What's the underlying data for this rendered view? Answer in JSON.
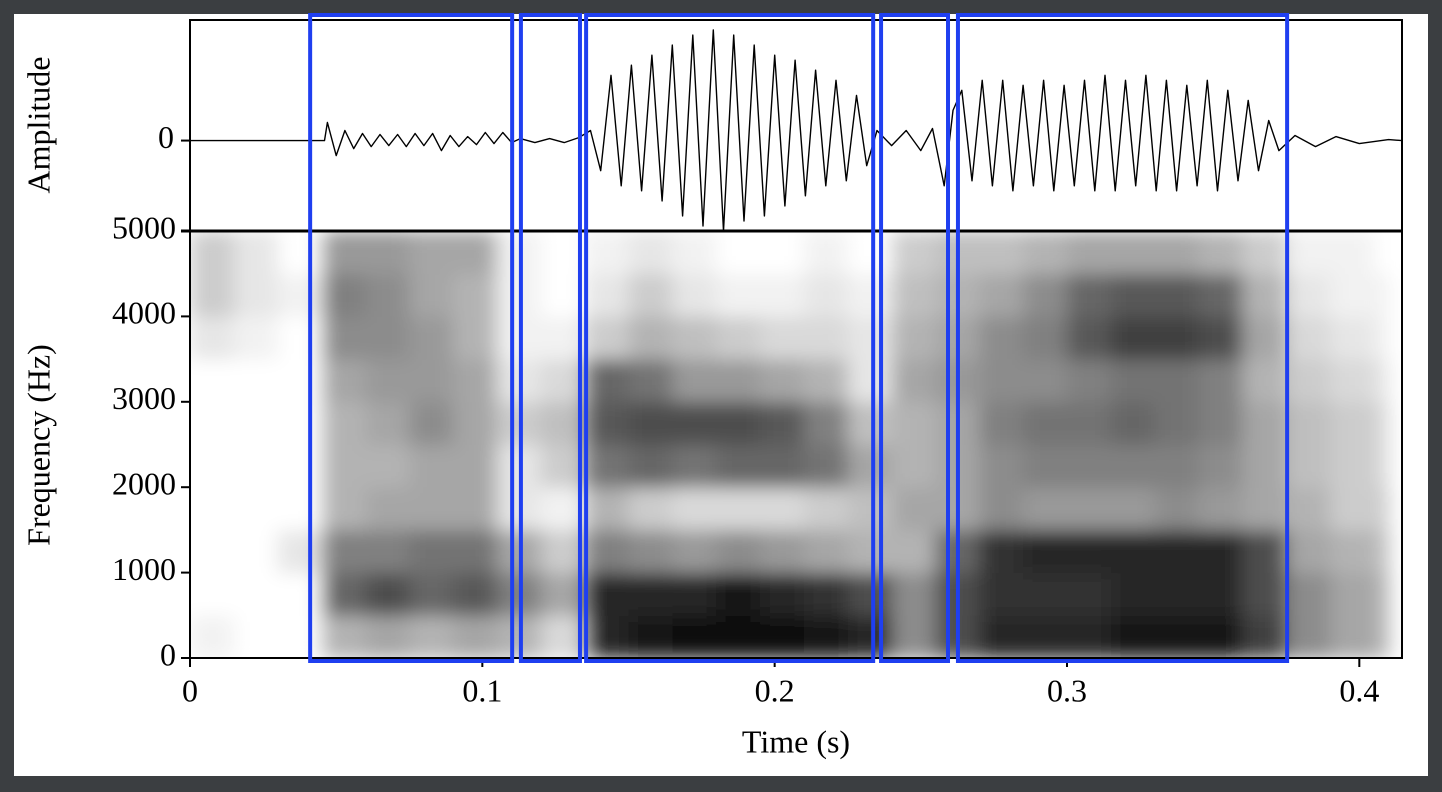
{
  "chart_data": [
    {
      "type": "line",
      "ylabel": "Amplitude",
      "color": "#000000",
      "xlim": [
        0,
        0.4146
      ],
      "ylim": [
        -0.9,
        1.2
      ],
      "yticks": [
        0
      ],
      "x": [
        0,
        0.046,
        0.047,
        0.05,
        0.053,
        0.056,
        0.059,
        0.062,
        0.065,
        0.068,
        0.071,
        0.074,
        0.077,
        0.08,
        0.083,
        0.086,
        0.089,
        0.092,
        0.095,
        0.098,
        0.101,
        0.104,
        0.107,
        0.11,
        0.113,
        0.118,
        0.123,
        0.128,
        0.133,
        0.137,
        0.1405,
        0.144,
        0.1475,
        0.151,
        0.1545,
        0.158,
        0.1615,
        0.165,
        0.1685,
        0.172,
        0.1755,
        0.179,
        0.1825,
        0.186,
        0.1895,
        0.193,
        0.1965,
        0.2,
        0.2035,
        0.207,
        0.2105,
        0.214,
        0.2175,
        0.221,
        0.2245,
        0.228,
        0.2315,
        0.235,
        0.24,
        0.245,
        0.25,
        0.254,
        0.258,
        0.261,
        0.264,
        0.2675,
        0.271,
        0.2745,
        0.278,
        0.2815,
        0.285,
        0.2885,
        0.292,
        0.2955,
        0.299,
        0.3025,
        0.306,
        0.3095,
        0.313,
        0.3165,
        0.32,
        0.3235,
        0.327,
        0.3305,
        0.334,
        0.3375,
        0.341,
        0.3445,
        0.348,
        0.3515,
        0.355,
        0.3585,
        0.362,
        0.3655,
        0.369,
        0.3725,
        0.378,
        0.385,
        0.392,
        0.4,
        0.41,
        0.4146
      ],
      "values": [
        0,
        0,
        0.18,
        -0.15,
        0.1,
        -0.08,
        0.07,
        -0.06,
        0.06,
        -0.05,
        0.06,
        -0.06,
        0.07,
        -0.05,
        0.07,
        -0.1,
        0.05,
        -0.06,
        0.04,
        -0.04,
        0.08,
        -0.03,
        0.08,
        -0.02,
        0.02,
        -0.02,
        0.02,
        -0.02,
        0.03,
        0.1,
        -0.3,
        0.65,
        -0.45,
        0.75,
        -0.5,
        0.85,
        -0.6,
        0.95,
        -0.75,
        1.05,
        -0.85,
        1.1,
        -0.9,
        1.05,
        -0.8,
        0.95,
        -0.75,
        0.85,
        -0.65,
        0.8,
        -0.55,
        0.7,
        -0.45,
        0.6,
        -0.4,
        0.45,
        -0.25,
        0.1,
        -0.05,
        0.1,
        -0.1,
        0.12,
        -0.45,
        0.3,
        0.5,
        -0.4,
        0.6,
        -0.45,
        0.6,
        -0.5,
        0.55,
        -0.45,
        0.6,
        -0.5,
        0.55,
        -0.45,
        0.6,
        -0.5,
        0.65,
        -0.5,
        0.6,
        -0.45,
        0.65,
        -0.5,
        0.6,
        -0.5,
        0.55,
        -0.45,
        0.6,
        -0.5,
        0.5,
        -0.4,
        0.4,
        -0.3,
        0.2,
        -0.1,
        0.05,
        -0.06,
        0.04,
        -0.03,
        0.01,
        0
      ]
    },
    {
      "type": "spectrogram",
      "xlabel": "Time (s)",
      "ylabel": "Frequency (Hz)",
      "xlim": [
        0,
        0.4146
      ],
      "xticks": [
        0,
        0.1,
        0.2,
        0.3,
        0.4
      ],
      "ylim": [
        0,
        5000
      ],
      "yticks": [
        0,
        1000,
        2000,
        3000,
        4000,
        5000
      ],
      "time_bins": [
        0,
        0.015,
        0.03,
        0.045,
        0.06,
        0.075,
        0.09,
        0.105,
        0.12,
        0.135,
        0.15,
        0.165,
        0.18,
        0.195,
        0.21,
        0.225,
        0.24,
        0.255,
        0.27,
        0.285,
        0.3,
        0.315,
        0.33,
        0.345,
        0.36,
        0.375,
        0.39,
        0.405,
        0.41
      ],
      "frequency_bins": [
        0,
        500,
        1000,
        1500,
        2000,
        2500,
        3000,
        3500,
        4000,
        4500,
        5000
      ],
      "intensity": [
        [
          0.05,
          0,
          0,
          0,
          0,
          0,
          0,
          0.1,
          0.2,
          0.2
        ],
        [
          0,
          0,
          0,
          0,
          0,
          0,
          0,
          0.05,
          0.1,
          0.1
        ],
        [
          0,
          0,
          0.1,
          0,
          0,
          0,
          0,
          0,
          0.05,
          0
        ],
        [
          0.3,
          0.6,
          0.5,
          0.3,
          0.3,
          0.3,
          0.35,
          0.45,
          0.5,
          0.4
        ],
        [
          0.35,
          0.7,
          0.5,
          0.35,
          0.3,
          0.35,
          0.4,
          0.45,
          0.45,
          0.4
        ],
        [
          0.3,
          0.6,
          0.55,
          0.35,
          0.35,
          0.45,
          0.4,
          0.4,
          0.35,
          0.35
        ],
        [
          0.35,
          0.65,
          0.55,
          0.35,
          0.35,
          0.35,
          0.35,
          0.3,
          0.3,
          0.35
        ],
        [
          0.3,
          0.5,
          0.35,
          0.1,
          0.1,
          0.2,
          0.1,
          0.05,
          0.05,
          0.05
        ],
        [
          0.15,
          0.35,
          0.2,
          0.05,
          0.2,
          0.25,
          0.15,
          0.05,
          0,
          0
        ],
        [
          0.85,
          0.85,
          0.5,
          0.3,
          0.55,
          0.65,
          0.6,
          0.2,
          0.1,
          0.05
        ],
        [
          0.9,
          0.85,
          0.45,
          0.2,
          0.6,
          0.7,
          0.55,
          0.3,
          0.2,
          0.1
        ],
        [
          0.95,
          0.85,
          0.4,
          0.15,
          0.55,
          0.7,
          0.4,
          0.25,
          0.1,
          0.05
        ],
        [
          0.95,
          0.9,
          0.45,
          0.15,
          0.6,
          0.7,
          0.4,
          0.2,
          0.05,
          0
        ],
        [
          0.95,
          0.85,
          0.4,
          0.15,
          0.6,
          0.65,
          0.35,
          0.15,
          0.05,
          0
        ],
        [
          0.9,
          0.8,
          0.35,
          0.2,
          0.55,
          0.5,
          0.3,
          0.15,
          0.1,
          0.05
        ],
        [
          0.85,
          0.7,
          0.3,
          0.25,
          0.35,
          0.25,
          0.1,
          0.1,
          0.05,
          0
        ],
        [
          0.45,
          0.45,
          0.3,
          0.35,
          0.3,
          0.3,
          0.35,
          0.3,
          0.25,
          0.2
        ],
        [
          0.7,
          0.7,
          0.6,
          0.35,
          0.35,
          0.35,
          0.4,
          0.35,
          0.3,
          0.25
        ],
        [
          0.85,
          0.8,
          0.8,
          0.45,
          0.45,
          0.5,
          0.45,
          0.45,
          0.35,
          0.25
        ],
        [
          0.85,
          0.8,
          0.85,
          0.4,
          0.5,
          0.55,
          0.45,
          0.5,
          0.45,
          0.3
        ],
        [
          0.85,
          0.8,
          0.85,
          0.4,
          0.5,
          0.55,
          0.5,
          0.65,
          0.6,
          0.35
        ],
        [
          0.9,
          0.85,
          0.85,
          0.4,
          0.5,
          0.6,
          0.55,
          0.75,
          0.65,
          0.35
        ],
        [
          0.9,
          0.85,
          0.85,
          0.45,
          0.5,
          0.55,
          0.55,
          0.75,
          0.65,
          0.35
        ],
        [
          0.9,
          0.85,
          0.85,
          0.4,
          0.45,
          0.5,
          0.5,
          0.7,
          0.6,
          0.3
        ],
        [
          0.75,
          0.7,
          0.7,
          0.35,
          0.35,
          0.35,
          0.3,
          0.35,
          0.3,
          0.2
        ],
        [
          0.45,
          0.45,
          0.35,
          0.3,
          0.25,
          0.25,
          0.2,
          0.15,
          0.1,
          0.05
        ],
        [
          0.35,
          0.35,
          0.3,
          0.2,
          0.2,
          0.2,
          0.15,
          0.1,
          0.05,
          0.05
        ],
        [
          0.3,
          0.3,
          0.25,
          0.2,
          0.15,
          0.15,
          0.1,
          0.05,
          0.05,
          0
        ]
      ],
      "segments": [
        [
          0.0411,
          0.1102
        ],
        [
          0.1132,
          0.1334
        ],
        [
          0.1355,
          0.2337
        ],
        [
          0.2364,
          0.2593
        ],
        [
          0.2627,
          0.3753
        ]
      ],
      "segment_color": "#1f3ff0"
    }
  ]
}
